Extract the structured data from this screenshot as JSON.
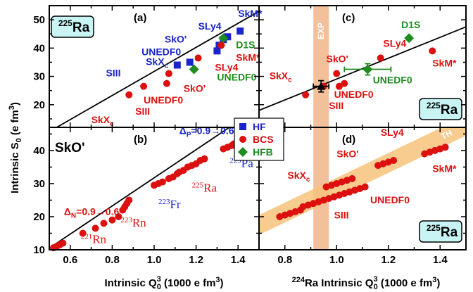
{
  "figure": {
    "ylabel": "Intrinsic S",
    "ylabel_sub": "0",
    "ylabel_unit": " (e fm",
    "ylabel_unit_sup": "3",
    "ylabel_close": ")",
    "xlabel_left_pre": "Intrinsic Q",
    "xlabel_left_sup": "3",
    "xlabel_left_sub": "0",
    "xlabel_left_post": " (1000 e fm",
    "xlabel_left_unit_sup": "3",
    "xlabel_left_close": ")",
    "xlabel_right_pre_sup": "224",
    "xlabel_right_pre": "Ra Intrinsic Q",
    "xlabel_right_sup": "3",
    "xlabel_right_sub": "0",
    "xlabel_right_post": " (1000 e fm",
    "xlabel_right_unit_sup": "3",
    "xlabel_right_close": ")",
    "colors": {
      "HF": "#1a24c8",
      "BCS": "#dd1010",
      "HFB": "#1e8c1e",
      "band_exp": "#f2c09a",
      "band_th": "#f7c27a",
      "box": "#c8f4f4"
    }
  },
  "legend": {
    "items": [
      {
        "label": "HF",
        "marker": "square",
        "color": "#1a24c8"
      },
      {
        "label": "BCS",
        "marker": "circle",
        "color": "#dd1010"
      },
      {
        "label": "HFB",
        "marker": "diamond",
        "color": "#1e8c1e"
      }
    ]
  },
  "chart_data": [
    {
      "panel": "a",
      "type": "scatter",
      "panel_label": "(a)",
      "box_label_sup": "225",
      "box_label": "Ra",
      "xlim": [
        0.5,
        1.5
      ],
      "ylim": [
        10,
        55
      ],
      "xticks": [],
      "yticks": [
        20,
        30,
        40,
        50
      ],
      "fit_line": {
        "x": [
          0.5,
          1.5
        ],
        "y": [
          10.5,
          53
        ]
      },
      "series": [
        {
          "name": "HF",
          "marker": "square",
          "color": "#1a24c8",
          "points": [
            {
              "x": 1.11,
              "y": 34
            },
            {
              "x": 1.17,
              "y": 35
            },
            {
              "x": 1.3,
              "y": 39
            },
            {
              "x": 1.31,
              "y": 41
            },
            {
              "x": 1.33,
              "y": 43
            },
            {
              "x": 1.35,
              "y": 44
            },
            {
              "x": 1.41,
              "y": 46
            }
          ]
        },
        {
          "name": "BCS",
          "marker": "circle",
          "color": "#dd1010",
          "points": [
            {
              "x": 0.88,
              "y": 23.5
            },
            {
              "x": 0.95,
              "y": 26.5
            },
            {
              "x": 1.06,
              "y": 27.5
            },
            {
              "x": 1.07,
              "y": 31
            },
            {
              "x": 1.19,
              "y": 32.5
            },
            {
              "x": 1.21,
              "y": 36.5
            },
            {
              "x": 1.32,
              "y": 41
            }
          ]
        },
        {
          "name": "HFB",
          "marker": "diamond",
          "color": "#1e8c1e",
          "points": [
            {
              "x": 1.19,
              "y": 32.5
            },
            {
              "x": 1.33,
              "y": 43.5
            }
          ]
        }
      ],
      "annotations": [
        {
          "text": "SkM*",
          "color": "#1a24c8",
          "x": 1.4,
          "y": 51
        },
        {
          "text": "SLy4",
          "color": "#1a24c8",
          "x": 1.21,
          "y": 46.5
        },
        {
          "text": "SkO'",
          "color": "#1a24c8",
          "x": 1.05,
          "y": 42
        },
        {
          "text": "UNEDF0",
          "color": "#1a24c8",
          "x": 0.94,
          "y": 37.5
        },
        {
          "text": "SkX",
          "sub": "c",
          "color": "#1a24c8",
          "x": 0.96,
          "y": 34
        },
        {
          "text": "SIII",
          "color": "#1a24c8",
          "x": 0.77,
          "y": 30
        },
        {
          "text": "D1S",
          "color": "#1e8c1e",
          "x": 1.39,
          "y": 40
        },
        {
          "text": "SkM*",
          "color": "#dd1010",
          "x": 1.39,
          "y": 35.5
        },
        {
          "text": "SLy4",
          "color": "#dd1010",
          "x": 1.29,
          "y": 32
        },
        {
          "text": "UNEDF0",
          "color": "#1e8c1e",
          "x": 1.3,
          "y": 28.5
        },
        {
          "text": "SkO'",
          "color": "#dd1010",
          "x": 1.14,
          "y": 24.5
        },
        {
          "text": "UNEDF0",
          "color": "#dd1010",
          "x": 0.95,
          "y": 20.5
        },
        {
          "text": "SIII",
          "color": "#dd1010",
          "x": 0.91,
          "y": 16.5
        },
        {
          "text": "SkX",
          "sub": "c",
          "color": "#dd1010",
          "x": 0.7,
          "y": 13.5
        }
      ]
    },
    {
      "panel": "b",
      "type": "scatter",
      "panel_label": "(b)",
      "title": "SkO'",
      "xlim": [
        0.5,
        1.5
      ],
      "ylim": [
        10,
        55
      ],
      "xticks": [
        0.6,
        0.8,
        1.0,
        1.2,
        1.4
      ],
      "yticks": [
        10,
        20,
        30,
        40
      ],
      "fit_line": {
        "x": [
          0.5,
          1.5
        ],
        "y": [
          10.5,
          53
        ]
      },
      "series": [
        {
          "name": "BCS",
          "marker": "circle",
          "color": "#dd1010",
          "points": [
            {
              "x": 0.52,
              "y": 10.6
            },
            {
              "x": 0.535,
              "y": 11.0
            },
            {
              "x": 0.55,
              "y": 11.5
            },
            {
              "x": 0.565,
              "y": 12.0
            },
            {
              "x": 0.66,
              "y": 15
            },
            {
              "x": 0.72,
              "y": 16.5
            },
            {
              "x": 0.76,
              "y": 18
            },
            {
              "x": 0.8,
              "y": 19
            },
            {
              "x": 0.83,
              "y": 20
            },
            {
              "x": 0.85,
              "y": 22
            },
            {
              "x": 0.86,
              "y": 23
            },
            {
              "x": 0.87,
              "y": 24
            },
            {
              "x": 0.88,
              "y": 25
            },
            {
              "x": 1.0,
              "y": 29.5
            },
            {
              "x": 1.02,
              "y": 30
            },
            {
              "x": 1.04,
              "y": 30.5
            },
            {
              "x": 1.07,
              "y": 31.5
            },
            {
              "x": 1.09,
              "y": 32
            },
            {
              "x": 1.11,
              "y": 33
            },
            {
              "x": 1.12,
              "y": 33.5
            },
            {
              "x": 1.14,
              "y": 34
            },
            {
              "x": 1.16,
              "y": 35
            },
            {
              "x": 1.18,
              "y": 35.5
            },
            {
              "x": 1.2,
              "y": 36
            },
            {
              "x": 1.22,
              "y": 37
            },
            {
              "x": 1.24,
              "y": 37.5
            },
            {
              "x": 1.33,
              "y": 40.5
            },
            {
              "x": 1.35,
              "y": 41
            },
            {
              "x": 1.37,
              "y": 41.5
            },
            {
              "x": 1.38,
              "y": 42
            }
          ]
        }
      ],
      "annotations": [
        {
          "text": "Δ",
          "sub": "P",
          "rest": "=0.9→0.6",
          "color": "#1a24c8",
          "x": 1.12,
          "y": 45
        },
        {
          "text": "Δ",
          "sub": "N",
          "rest": "=0.9→0.6",
          "color": "#dd1010",
          "x": 0.57,
          "y": 20.5
        },
        {
          "pre_sup": "229",
          "text": "Pa",
          "color": "#1a24c8",
          "x": 1.36,
          "y": 35
        },
        {
          "pre_sup": "225",
          "text": "Ra",
          "color": "#dd1010",
          "x": 1.18,
          "y": 27.5
        },
        {
          "pre_sup": "223",
          "text": "Fr",
          "color": "#1a24c8",
          "x": 1.02,
          "y": 22.5
        },
        {
          "pre_sup": "223",
          "text": "Rn",
          "color": "#dd1010",
          "x": 0.84,
          "y": 17
        },
        {
          "pre_sup": "221",
          "text": "Rn",
          "color": "#dd1010",
          "x": 0.65,
          "y": 12
        }
      ]
    },
    {
      "panel": "c",
      "type": "scatter",
      "panel_label": "(c)",
      "box_label_sup": "225",
      "box_label": "Ra",
      "band_label": "EXP",
      "band_x": [
        0.91,
        0.97
      ],
      "xlim": [
        0.7,
        1.5
      ],
      "ylim": [
        10,
        55
      ],
      "xticks": [],
      "yticks": [],
      "fit_line": {
        "x": [
          0.7,
          1.5
        ],
        "y": [
          18,
          47.5
        ]
      },
      "series": [
        {
          "name": "BCS",
          "marker": "circle",
          "color": "#dd1010",
          "points": [
            {
              "x": 0.88,
              "y": 23.5
            },
            {
              "x": 0.95,
              "y": 26.5
            },
            {
              "x": 1.0,
              "y": 31
            },
            {
              "x": 1.01,
              "y": 26.5
            },
            {
              "x": 1.03,
              "y": 27.5
            },
            {
              "x": 1.17,
              "y": 36.5
            },
            {
              "x": 1.37,
              "y": 39
            }
          ]
        },
        {
          "name": "HFB",
          "marker": "diamond",
          "color": "#1e8c1e",
          "points": [
            {
              "x": 1.12,
              "y": 32.5,
              "xerr": 0.09,
              "yerr": 2
            },
            {
              "x": 1.28,
              "y": 43.5
            }
          ]
        },
        {
          "name": "EXP",
          "marker": "triangle",
          "color": "#000000",
          "points": [
            {
              "x": 0.94,
              "y": 26.5,
              "xerr": 0.03,
              "yerr": 2
            }
          ]
        }
      ],
      "annotations": [
        {
          "text": "D1S",
          "color": "#1e8c1e",
          "x": 1.25,
          "y": 47
        },
        {
          "text": "SLy4",
          "color": "#dd1010",
          "x": 1.18,
          "y": 40.5
        },
        {
          "text": "SkO'",
          "color": "#dd1010",
          "x": 0.96,
          "y": 35
        },
        {
          "text": "SkM*",
          "color": "#dd1010",
          "x": 1.37,
          "y": 33.5
        },
        {
          "text": "SkX",
          "sub": "c",
          "color": "#dd1010",
          "x": 0.74,
          "y": 29
        },
        {
          "text": "UNEDF0",
          "color": "#1e8c1e",
          "x": 1.14,
          "y": 27.5
        },
        {
          "text": "UNEDF0",
          "color": "#dd1010",
          "x": 0.99,
          "y": 22.5
        },
        {
          "text": "SIII",
          "color": "#dd1010",
          "x": 0.97,
          "y": 18.5
        }
      ]
    },
    {
      "panel": "d",
      "type": "scatter",
      "panel_label": "(d)",
      "box_label_sup": "225",
      "box_label": "Ra",
      "band_label": "TH",
      "band_x": [
        0.91,
        0.97
      ],
      "xlim": [
        0.7,
        1.5
      ],
      "ylim": [
        10,
        55
      ],
      "xticks": [
        0.8,
        1.0,
        1.2,
        1.4
      ],
      "yticks": [],
      "th_band": {
        "x": [
          0.7,
          1.5
        ],
        "y": [
          17.5,
          47.5
        ],
        "half_width": 3
      },
      "series": [
        {
          "name": "BCS",
          "marker": "circle",
          "color": "#dd1010",
          "points": [
            {
              "x": 0.78,
              "y": 20
            },
            {
              "x": 0.8,
              "y": 20.5
            },
            {
              "x": 0.82,
              "y": 21
            },
            {
              "x": 0.84,
              "y": 21.5
            },
            {
              "x": 0.86,
              "y": 22
            },
            {
              "x": 0.87,
              "y": 23
            },
            {
              "x": 0.89,
              "y": 23.5
            },
            {
              "x": 0.91,
              "y": 24
            },
            {
              "x": 0.93,
              "y": 24.5
            },
            {
              "x": 0.95,
              "y": 25
            },
            {
              "x": 0.97,
              "y": 25.5
            },
            {
              "x": 0.99,
              "y": 26
            },
            {
              "x": 1.01,
              "y": 26.5
            },
            {
              "x": 1.03,
              "y": 27
            },
            {
              "x": 1.05,
              "y": 27.5
            },
            {
              "x": 1.07,
              "y": 28
            },
            {
              "x": 1.09,
              "y": 28.5
            },
            {
              "x": 1.11,
              "y": 29
            },
            {
              "x": 0.96,
              "y": 29
            },
            {
              "x": 0.98,
              "y": 29.5
            },
            {
              "x": 1.0,
              "y": 30
            },
            {
              "x": 1.02,
              "y": 30.5
            },
            {
              "x": 1.04,
              "y": 31
            },
            {
              "x": 1.06,
              "y": 31.5
            },
            {
              "x": 1.16,
              "y": 35.5
            },
            {
              "x": 1.18,
              "y": 36
            },
            {
              "x": 1.2,
              "y": 36.5
            },
            {
              "x": 1.22,
              "y": 37
            },
            {
              "x": 1.34,
              "y": 39
            },
            {
              "x": 1.36,
              "y": 39.5
            },
            {
              "x": 1.38,
              "y": 40
            },
            {
              "x": 1.4,
              "y": 40.5
            },
            {
              "x": 1.42,
              "y": 41
            }
          ]
        }
      ],
      "annotations": [
        {
          "text": "SLy4",
          "color": "#dd1010",
          "x": 1.17,
          "y": 44.5
        },
        {
          "text": "SkO'",
          "color": "#dd1010",
          "x": 1.0,
          "y": 38
        },
        {
          "text": "SkX",
          "sub": "c",
          "color": "#dd1010",
          "x": 0.81,
          "y": 31.5
        },
        {
          "text": "SkM*",
          "color": "#dd1010",
          "x": 1.37,
          "y": 33.5
        },
        {
          "text": "UNEDF0",
          "color": "#dd1010",
          "x": 1.13,
          "y": 24
        },
        {
          "text": "SIII",
          "color": "#dd1010",
          "x": 0.99,
          "y": 19.5
        }
      ]
    }
  ]
}
